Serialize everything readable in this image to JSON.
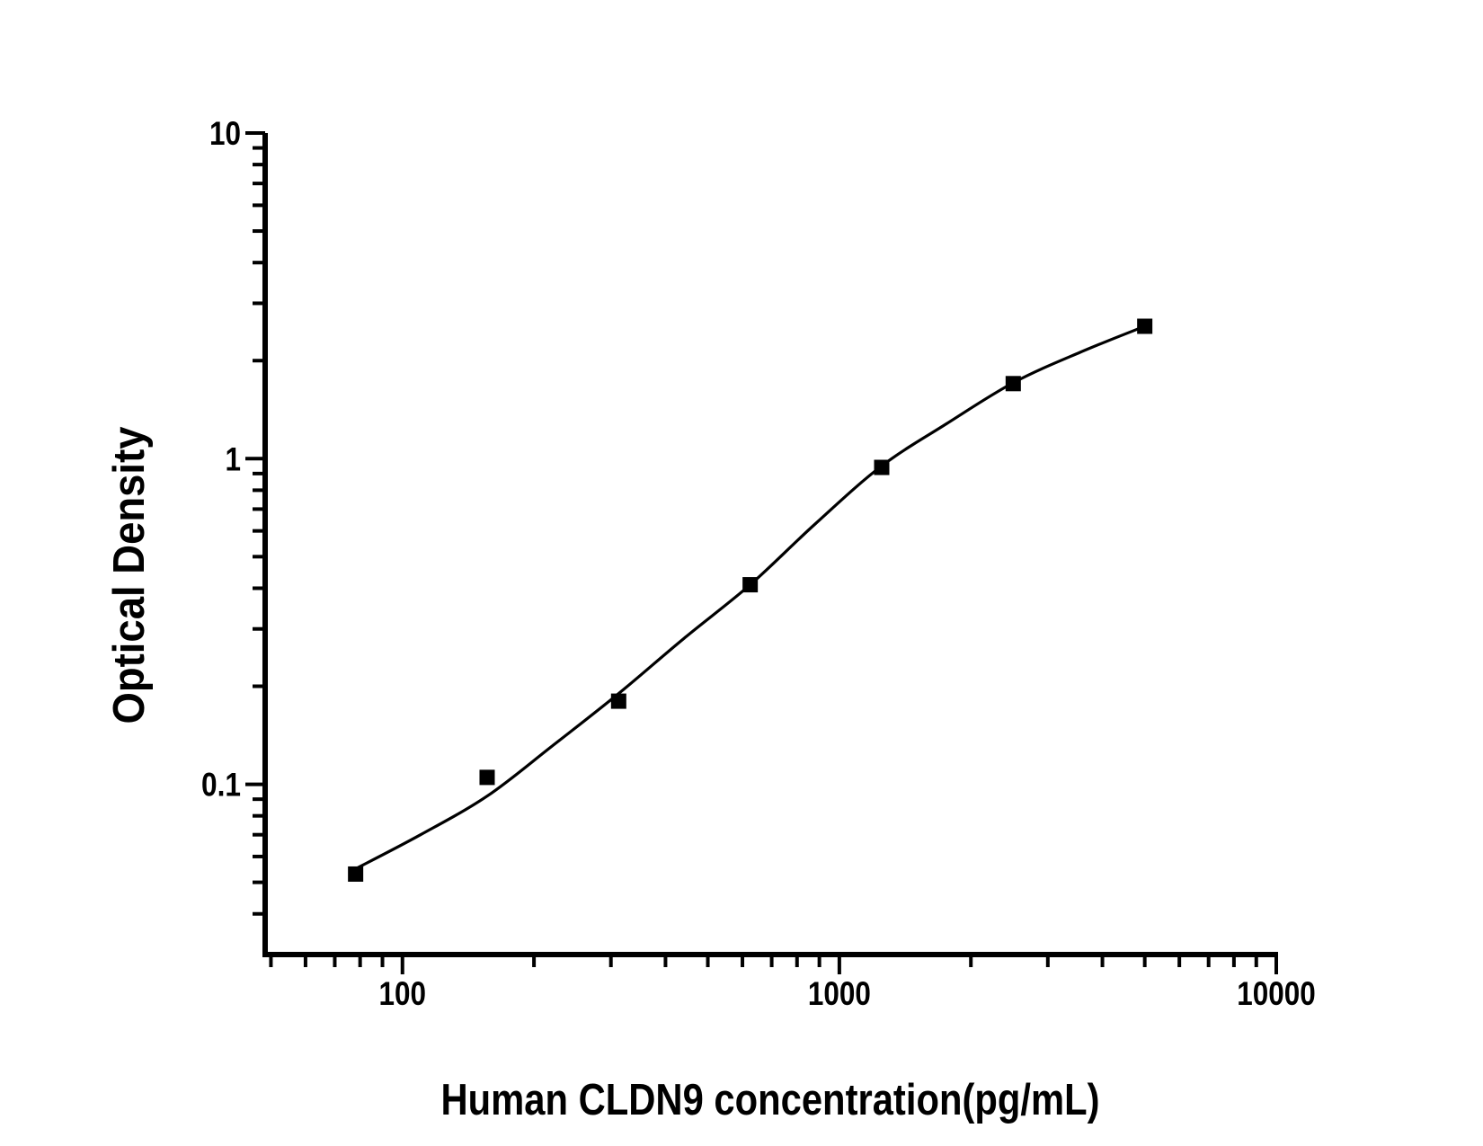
{
  "figure": {
    "background_color": "#ffffff",
    "ink_color": "#000000"
  },
  "chart_data": {
    "type": "scatter",
    "title": "",
    "xlabel": "Human CLDN9 concentration(pg/mL)",
    "ylabel": "Optical Density",
    "x_scale": "log",
    "y_scale": "log",
    "xlim": [
      48.5,
      10000
    ],
    "ylim": [
      0.03,
      10
    ],
    "x_ticks": [
      100,
      1000,
      10000
    ],
    "x_tick_labels": [
      "100",
      "1000",
      "10000"
    ],
    "y_ticks": [
      0.1,
      1,
      10
    ],
    "y_tick_labels": [
      "0.1",
      "1",
      "10"
    ],
    "grid": false,
    "legend": false,
    "marker": "filled-square",
    "marker_color": "#000000",
    "line_color": "#000000",
    "series": [
      {
        "name": "standards",
        "x": [
          78.125,
          156.25,
          312.5,
          625,
          1250,
          2500,
          5000
        ],
        "y": [
          0.053,
          0.105,
          0.18,
          0.41,
          0.94,
          1.7,
          2.55
        ]
      }
    ],
    "fit_curve": {
      "description": "four-parameter-logistic fit line",
      "x": [
        78.125,
        110,
        156.25,
        220,
        312.5,
        440,
        625,
        880,
        1250,
        1760,
        2500,
        3550,
        5000
      ],
      "y": [
        0.055,
        0.07,
        0.092,
        0.131,
        0.19,
        0.28,
        0.41,
        0.63,
        0.95,
        1.28,
        1.71,
        2.12,
        2.55
      ]
    }
  }
}
